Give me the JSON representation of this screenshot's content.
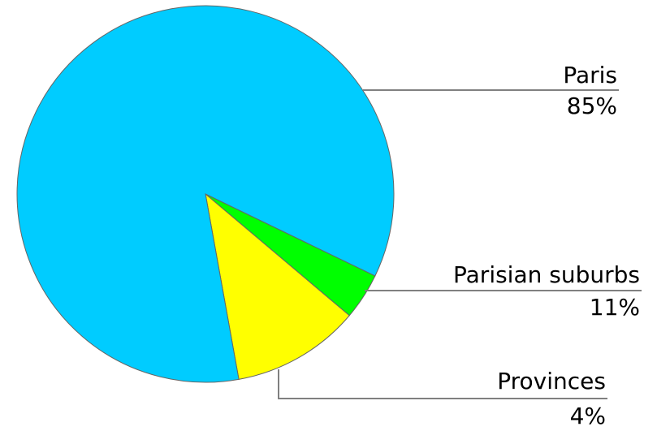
{
  "chart_data": {
    "type": "pie",
    "categories": [
      "Paris",
      "Parisian suburbs",
      "Provinces"
    ],
    "values": [
      85,
      11,
      4
    ],
    "value_labels": [
      "85%",
      "11%",
      "4%"
    ],
    "colors": [
      "#00ccff",
      "#ffff00",
      "#00ff00"
    ]
  }
}
